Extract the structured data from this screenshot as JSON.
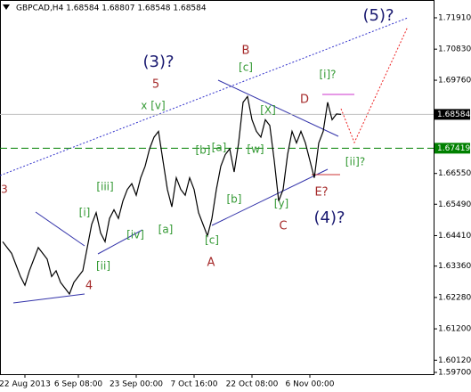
{
  "chart_data": {
    "type": "line",
    "title": "GBPCAD,H4  1.68584 1.68807 1.68548 1.68584",
    "categories": [
      null,
      null,
      null,
      null,
      null,
      "22 Aug 2013",
      null,
      null,
      null,
      null,
      null,
      null,
      null,
      null,
      null,
      null,
      null,
      "6 Sep 08:00",
      null,
      null,
      null,
      null,
      null,
      null,
      null,
      null,
      null,
      null,
      null,
      null,
      "23 Sep 00:00",
      null,
      null,
      null,
      null,
      null,
      null,
      null,
      null,
      null,
      null,
      null,
      null,
      "7 Oct 16:00",
      null,
      null,
      null,
      null,
      null,
      null,
      null,
      null,
      null,
      null,
      null,
      null,
      "22 Oct 08:00",
      null,
      null,
      null,
      null,
      null,
      null,
      null,
      null,
      null,
      null,
      null,
      null,
      "6 Nov 00:00",
      null,
      null,
      null,
      null,
      null,
      null,
      null
    ],
    "series": [
      {
        "name": "GBPCAD",
        "color": "#000000",
        "values": [
          1.642,
          1.64,
          1.638,
          1.634,
          1.63,
          1.627,
          1.632,
          1.636,
          1.64,
          1.638,
          1.636,
          1.63,
          1.632,
          1.628,
          1.626,
          1.624,
          1.628,
          1.63,
          1.632,
          1.64,
          1.648,
          1.652,
          1.645,
          1.642,
          1.65,
          1.653,
          1.65,
          1.656,
          1.66,
          1.662,
          1.658,
          1.664,
          1.668,
          1.674,
          1.678,
          1.68,
          1.67,
          1.66,
          1.654,
          1.664,
          1.66,
          1.658,
          1.664,
          1.66,
          1.652,
          1.648,
          1.644,
          1.65,
          1.66,
          1.668,
          1.672,
          1.674,
          1.666,
          1.676,
          1.69,
          1.692,
          1.684,
          1.68,
          1.678,
          1.684,
          1.682,
          1.67,
          1.656,
          1.66,
          1.672,
          1.68,
          1.676,
          1.68,
          1.676,
          1.67,
          1.664,
          1.676,
          1.68,
          1.69,
          1.684,
          1.686,
          1.68584
        ]
      }
    ],
    "ylim": [
      1.597,
      1.724
    ],
    "yticks": [
      {
        "value": 1.7191,
        "label": "1.71910"
      },
      {
        "value": 1.7083,
        "label": "1.70830"
      },
      {
        "value": 1.6976,
        "label": "1.69760"
      },
      {
        "value": 1.6655,
        "label": "1.66550"
      },
      {
        "value": 1.6549,
        "label": "1.65490"
      },
      {
        "value": 1.6441,
        "label": "1.64410"
      },
      {
        "value": 1.6336,
        "label": "1.63360"
      },
      {
        "value": 1.6228,
        "label": "1.62280"
      },
      {
        "value": 1.612,
        "label": "1.61200"
      },
      {
        "value": 1.6012,
        "label": "1.60120"
      },
      {
        "value": 1.597,
        "label": "1.59700"
      }
    ],
    "price_lines": [
      {
        "value": 1.68584,
        "label": "1.68584",
        "color": "#c0c0c0",
        "style": "solid"
      },
      {
        "value": 1.67419,
        "label": "1.67419",
        "color": "#008000",
        "style": "dashed"
      }
    ],
    "annotations": [
      "3",
      "[i]",
      "[ii]",
      "[iii]",
      "[iv]",
      "4",
      "x [v]",
      "5",
      "(3)?",
      "[a]",
      "[b]",
      "[a]",
      "[c]",
      "A",
      "[b]",
      "[c]",
      "B",
      "[X]",
      "[w]",
      "[y]",
      "C",
      "D",
      "[i]?",
      "[ii]?",
      "E?",
      "(4)?",
      "(5)?"
    ]
  }
}
